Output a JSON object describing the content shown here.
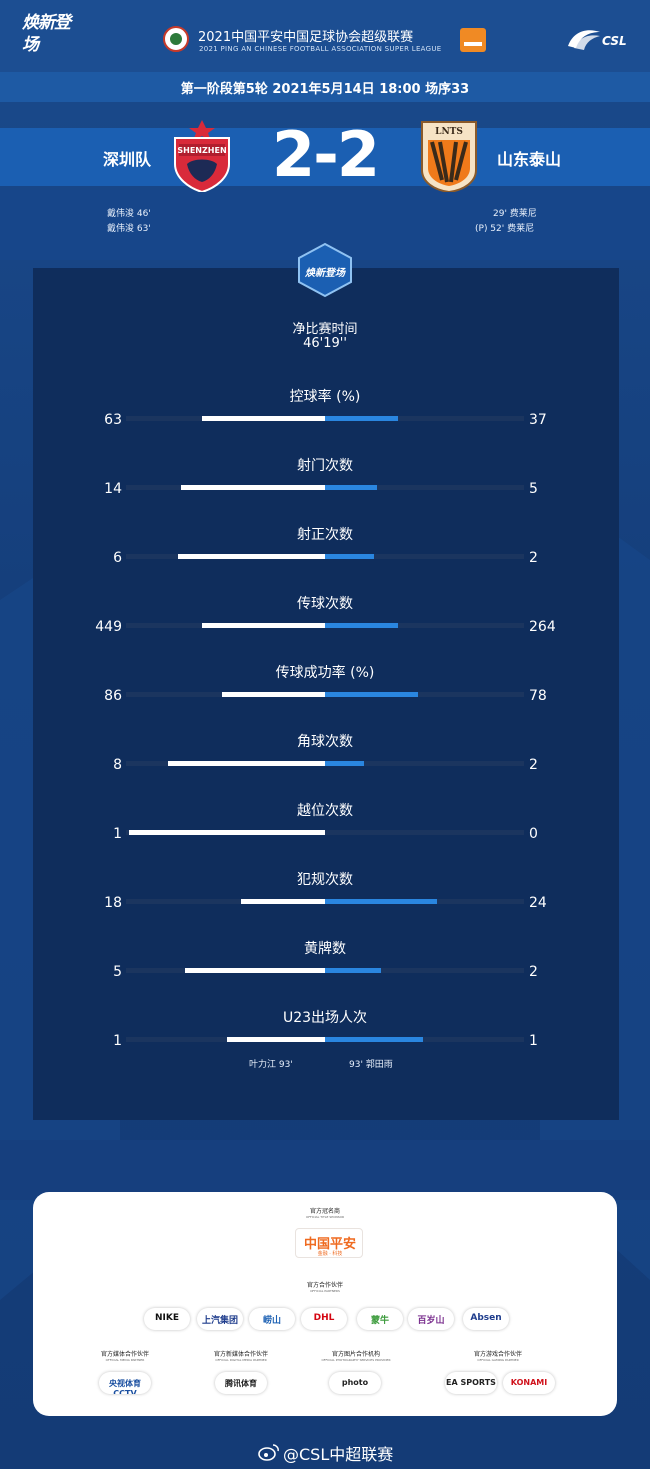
{
  "header": {
    "brand_left": "焕新登场",
    "league_title": "2021中国平安中国足球协会超级联赛",
    "league_sub": "2021 PING AN CHINESE FOOTBALL ASSOCIATION SUPER LEAGUE",
    "csl": "CSL"
  },
  "match": {
    "round_text": "第一阶段第5轮  2021年5月14日 18:00 场序33",
    "home_team": "深圳队",
    "away_team": "山东泰山",
    "score": "2-2",
    "home_crest_text": "SHENZHEN",
    "away_crest_text": "LNTS",
    "home_scorers": [
      "戴伟浚  46'",
      "戴伟浚  63'"
    ],
    "away_scorers": [
      "29'  费莱尼",
      "(P)  52'  费莱尼"
    ]
  },
  "panel": {
    "badge_text": "焕新登场",
    "net_time_label": "净比赛时间",
    "net_time_value": "46'19''"
  },
  "stats": [
    {
      "label": "控球率 (%)",
      "home": "63",
      "away": "37",
      "home_v": 63,
      "away_v": 37
    },
    {
      "label": "射门次数",
      "home": "14",
      "away": "5",
      "home_v": 14,
      "away_v": 5
    },
    {
      "label": "射正次数",
      "home": "6",
      "away": "2",
      "home_v": 6,
      "away_v": 2
    },
    {
      "label": "传球次数",
      "home": "449",
      "away": "264",
      "home_v": 449,
      "away_v": 264
    },
    {
      "label": "传球成功率 (%)",
      "home": "86",
      "away": "78",
      "home_v": 86,
      "away_v": 78
    },
    {
      "label": "角球次数",
      "home": "8",
      "away": "2",
      "home_v": 8,
      "away_v": 2
    },
    {
      "label": "越位次数",
      "home": "1",
      "away": "0",
      "home_v": 1,
      "away_v": 0
    },
    {
      "label": "犯规次数",
      "home": "18",
      "away": "24",
      "home_v": 18,
      "away_v": 24
    },
    {
      "label": "黄牌数",
      "home": "5",
      "away": "2",
      "home_v": 5,
      "away_v": 2
    },
    {
      "label": "U23出场人次",
      "home": "1",
      "away": "1",
      "home_v": 1,
      "away_v": 1
    }
  ],
  "u23": {
    "home_player": "叶力江   93'",
    "away_player": "93'   郭田雨"
  },
  "sponsors": {
    "title": "官方冠名商",
    "title_sub": "OFFICIAL TITLE SPONSOR",
    "pingan_main": "中国平安",
    "pingan_sub": "金融 · 科技",
    "partners_title": "官方合作伙伴",
    "partners_sub": "OFFICIAL PARTNERS",
    "partners": [
      "NIKE",
      "上汽集团",
      "崂山",
      "DHL",
      "蒙牛",
      "百岁山",
      "Absen"
    ],
    "partner_colors": [
      "#111111",
      "#1e3c8c",
      "#1e62b4",
      "#d40511",
      "#3a9a3a",
      "#7a2f8e",
      "#1e3c8c"
    ],
    "categories": [
      {
        "title": "官方媒体合作伙伴",
        "sub": "OFFICIAL MEDIA PARTNER"
      },
      {
        "title": "官方新媒体合作伙伴",
        "sub": "OFFICIAL DIGITAL MEDIA PARTNER"
      },
      {
        "title": "官方图片合作机构",
        "sub": "OFFICIAL PHOTOGRAPHY SERVICES PROVIDER"
      },
      {
        "title": "官方游戏合作伙伴",
        "sub": "OFFICIAL GAMING PARTNER"
      }
    ],
    "media": [
      "央视体育 CCTV SPORTS",
      "腾讯体育",
      "photo",
      "EA SPORTS",
      "KONAMI"
    ],
    "media_colors": [
      "#1a4fa0",
      "#1f1f1f",
      "#222222",
      "#222222",
      "#d0121b"
    ]
  },
  "footer": {
    "weibo": "@CSL中超联赛"
  }
}
